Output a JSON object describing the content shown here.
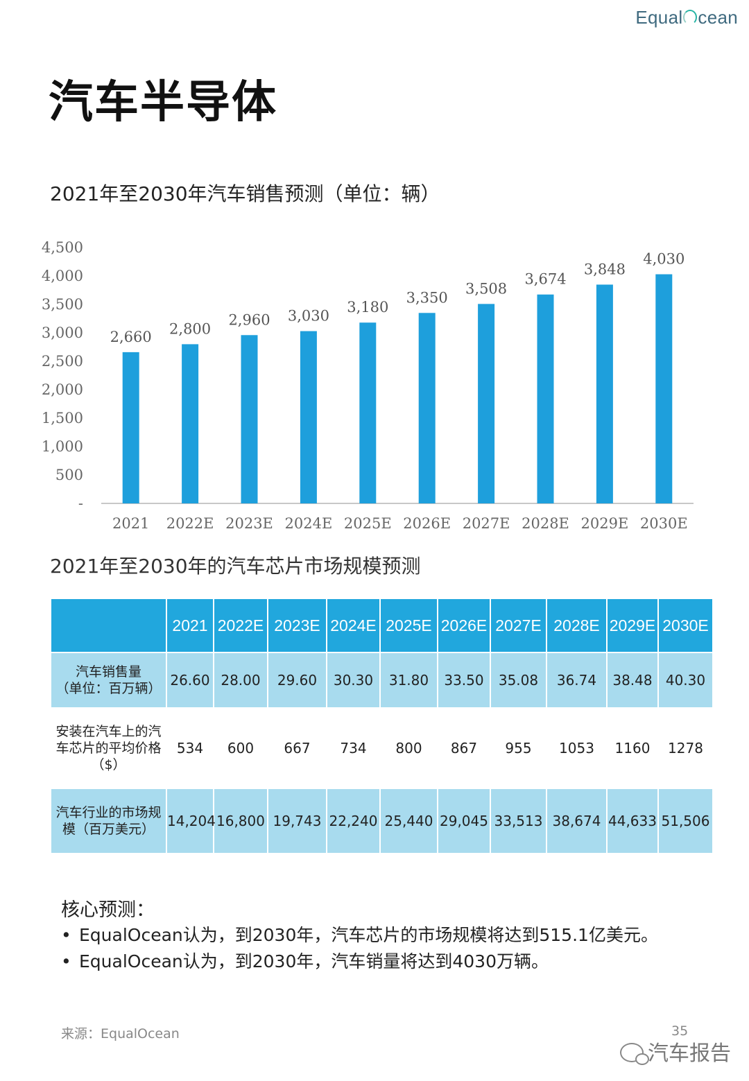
{
  "logo": {
    "left": "Equal",
    "right": "cean"
  },
  "page_title": "汽车半导体",
  "table_title": "2021年至2030年的汽车芯片市场规模预测",
  "table": {
    "headers": [
      "",
      "2021",
      "2022E",
      "2023E",
      "2024E",
      "2025E",
      "2026E",
      "2027E",
      "2028E",
      "2029E",
      "2030E"
    ],
    "rows": [
      {
        "label_line1": "汽车销售量",
        "label_line2": "（单位：百万辆）",
        "label_line3": "",
        "values": [
          "26.60",
          "28.00",
          "29.60",
          "30.30",
          "31.80",
          "33.50",
          "35.08",
          "36.74",
          "38.48",
          "40.30"
        ]
      },
      {
        "label_line1": "安装在汽车上的汽",
        "label_line2": "车芯片的平均价格",
        "label_line3": "（$）",
        "values": [
          "534",
          "600",
          "667",
          "734",
          "800",
          "867",
          "955",
          "1053",
          "1160",
          "1278"
        ]
      },
      {
        "label_line1": "汽车行业的市场规",
        "label_line2": "模（百万美元）",
        "label_line3": "",
        "values": [
          "14,204",
          "16,800",
          "19,743",
          "22,240",
          "25,440",
          "29,045",
          "33,513",
          "38,674",
          "44,633",
          "51,506"
        ]
      }
    ]
  },
  "core": {
    "title": "核心预测：",
    "bullet_char": "•",
    "items": [
      "EqualOcean认为，到2030年，汽车芯片的市场规模将达到515.1亿美元。",
      "EqualOcean认为，到2030年，汽车销量将达到4030万辆。"
    ]
  },
  "footer": {
    "source": "来源：EqualOcean",
    "page_number": "35",
    "watermark": "汽车报告"
  },
  "colors": {
    "bar": "#1e9fdc",
    "header": "#21a7dd",
    "row_shade": "#a8dbee"
  },
  "chart_data": {
    "type": "bar",
    "title": "2021年至2030年汽车销售预测（单位：辆）",
    "categories": [
      "2021",
      "2022E",
      "2023E",
      "2024E",
      "2025E",
      "2026E",
      "2027E",
      "2028E",
      "2029E",
      "2030E"
    ],
    "values": [
      2660,
      2800,
      2960,
      3030,
      3180,
      3350,
      3508,
      3674,
      3848,
      4030
    ],
    "data_labels": [
      "2,660",
      "2,800",
      "2,960",
      "3,030",
      "3,180",
      "3,350",
      "3,508",
      "3,674",
      "3,848",
      "4,030"
    ],
    "yticks": [
      0,
      500,
      1000,
      1500,
      2000,
      2500,
      3000,
      3500,
      4000,
      4500
    ],
    "ytick_labels": [
      "-",
      "500",
      "1,000",
      "1,500",
      "2,000",
      "2,500",
      "3,000",
      "3,500",
      "4,000",
      "4,500"
    ],
    "ylim": [
      0,
      4500
    ],
    "xlabel": "",
    "ylabel": "",
    "grid": false
  }
}
